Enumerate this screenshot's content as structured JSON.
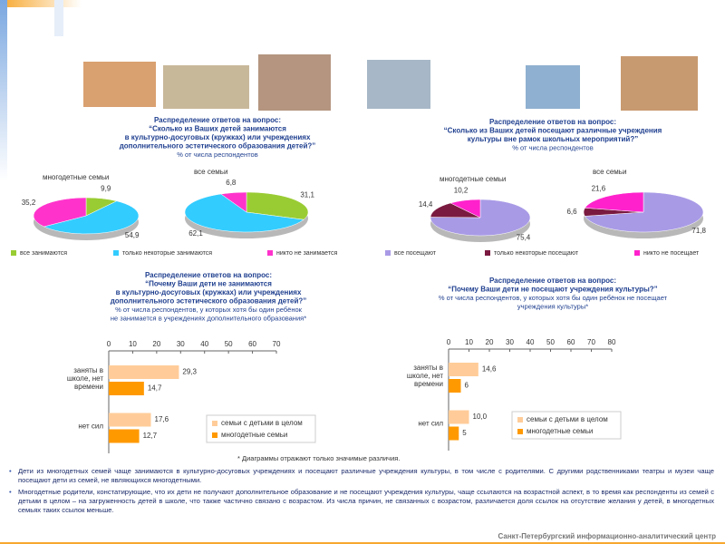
{
  "chart_data": [
    {
      "type": "pie",
      "title": [
        "Распределение ответов на вопрос:",
        "“Сколько из Ваших детей занимаются",
        "в культурно-досуговых (кружках) или учреждениях",
        "дополнительного эстетического образования детей?”"
      ],
      "subtitle": [
        "% от числа респондентов"
      ],
      "categories": [
        "все занимаются",
        "только некоторые занимаются",
        "никто не занимается"
      ],
      "colors": [
        "#99cc33",
        "#33ccff",
        "#ff33cc"
      ],
      "pies": [
        {
          "name": "многодетные семьи",
          "values": [
            9.9,
            54.9,
            35.2
          ],
          "value_labels": [
            "9,9",
            "54,9",
            "35,2"
          ]
        },
        {
          "name": "все семьи",
          "values": [
            31.1,
            62.1,
            6.8
          ],
          "value_labels": [
            "31,1",
            "62,1",
            "6,8"
          ]
        }
      ]
    },
    {
      "type": "pie",
      "title": [
        "Распределение ответов на вопрос:",
        "“Сколько из Ваших детей посещают различные учреждения",
        "культуры вне рамок школьных мероприятий?”"
      ],
      "subtitle": [
        "% от числа респондентов"
      ],
      "categories": [
        "все посещают",
        "только некоторые посещают",
        "никто не посещает"
      ],
      "colors": [
        "#a99ae6",
        "#7a1a40",
        "#ff22cc"
      ],
      "pies": [
        {
          "name": "многодетные семьи",
          "values": [
            75.4,
            14.4,
            10.2
          ],
          "value_labels": [
            "75,4",
            "14,4",
            "10,2"
          ]
        },
        {
          "name": "все семьи",
          "values": [
            71.8,
            6.6,
            21.6
          ],
          "value_labels": [
            "71,8",
            "6,6",
            "21,6"
          ]
        }
      ]
    },
    {
      "type": "bar",
      "title": [
        "Распределение ответов на вопрос:",
        "“Почему Ваши дети не занимаются",
        "в культурно-досуговых (кружках) или учреждениях",
        "дополнительного эстетического образования детей?”"
      ],
      "subtitle": [
        "% от числа респондентов, у которых хотя бы один ребёнок",
        "не занимается в учреждениях дополнительного образования*"
      ],
      "categories": [
        "заняты в школе, нет времени",
        "нет сил"
      ],
      "series": [
        {
          "name": "семьи с детьми в целом",
          "color": "#ffcc99",
          "values": [
            29.3,
            17.6
          ],
          "value_labels": [
            "29,3",
            "17,6"
          ]
        },
        {
          "name": "многодетные семьи",
          "color": "#ff9900",
          "values": [
            14.7,
            12.7
          ],
          "value_labels": [
            "14,7",
            "12,7"
          ]
        }
      ],
      "xlim": [
        0,
        70
      ],
      "xticks": [
        0,
        10,
        20,
        30,
        40,
        50,
        60,
        70
      ]
    },
    {
      "type": "bar",
      "title": [
        "Распределение ответов на вопрос:",
        "“Почему Ваши дети не посещают учреждения культуры?”"
      ],
      "subtitle": [
        "% от числа респондентов, у которых хотя бы один ребёнок не посещает",
        "учреждения культуры*"
      ],
      "categories": [
        "заняты в школе, нет времени",
        "нет сил"
      ],
      "series": [
        {
          "name": "семьи с детьми в целом",
          "color": "#ffcc99",
          "values": [
            14.6,
            10.0
          ],
          "value_labels": [
            "14,6",
            "10,0"
          ]
        },
        {
          "name": "многодетные семьи",
          "color": "#ff9900",
          "values": [
            6,
            5
          ]
        }
      ],
      "xlim": [
        0,
        80
      ],
      "xticks": [
        0,
        10,
        20,
        30,
        40,
        50,
        60,
        70,
        80
      ]
    }
  ],
  "footnote": "* Диаграммы отражают только значимые различия.",
  "bullets": [
    "Дети из многодетных семей чаще занимаются в культурно-досуговых учреждениях и посещают различные учреждения культуры, в том числе с родителями. С другими родственниками театры и музеи чаще посещают дети из семей, не являющихся многодетными.",
    "Многодетные родители, констатирующие, что их дети не получают дополнительное образование и не посещают учреждения культуры, чаще ссылаются на возрастной аспект, в то время как респонденты из семей с детьми в целом – на загруженность детей в школе, что также частично связано с возрастом. Из числа причин, не связанных с возрастом, различается доля ссылок на отсутствие желания у детей, в многодетных семьях таких ссылок меньше."
  ],
  "footer": "Санкт-Петербургский информационно-аналитический центр"
}
